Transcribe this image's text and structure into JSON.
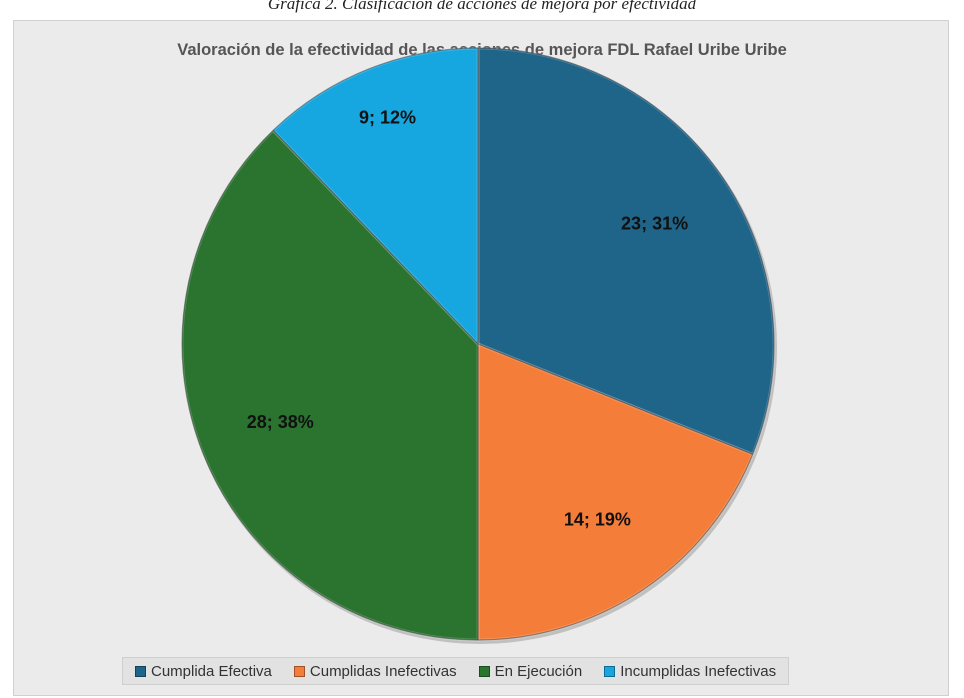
{
  "caption": "Gráfica 2. Clasificación de acciones de mejora por efectividad",
  "chart_data": {
    "type": "pie",
    "title": "Valoración de la efectividad de las acciones de mejora FDL Rafael Uribe Uribe",
    "slices": [
      {
        "label": "Cumplida Efectiva",
        "value": 23,
        "percent": "31%",
        "data_label": "23; 31%",
        "color": "#1f6489"
      },
      {
        "label": "Cumplidas Inefectivas",
        "value": 14,
        "percent": "19%",
        "data_label": "14; 19%",
        "color": "#f47e39"
      },
      {
        "label": "En Ejecución",
        "value": 28,
        "percent": "38%",
        "data_label": "28; 38%",
        "color": "#2a7430"
      },
      {
        "label": "Incumplidas Inefectivas",
        "value": 9,
        "percent": "12%",
        "data_label": "9; 12%",
        "color": "#16a6e0"
      }
    ],
    "start_angle": "12 o'clock",
    "direction": "clockwise",
    "legend_position": "bottom"
  }
}
